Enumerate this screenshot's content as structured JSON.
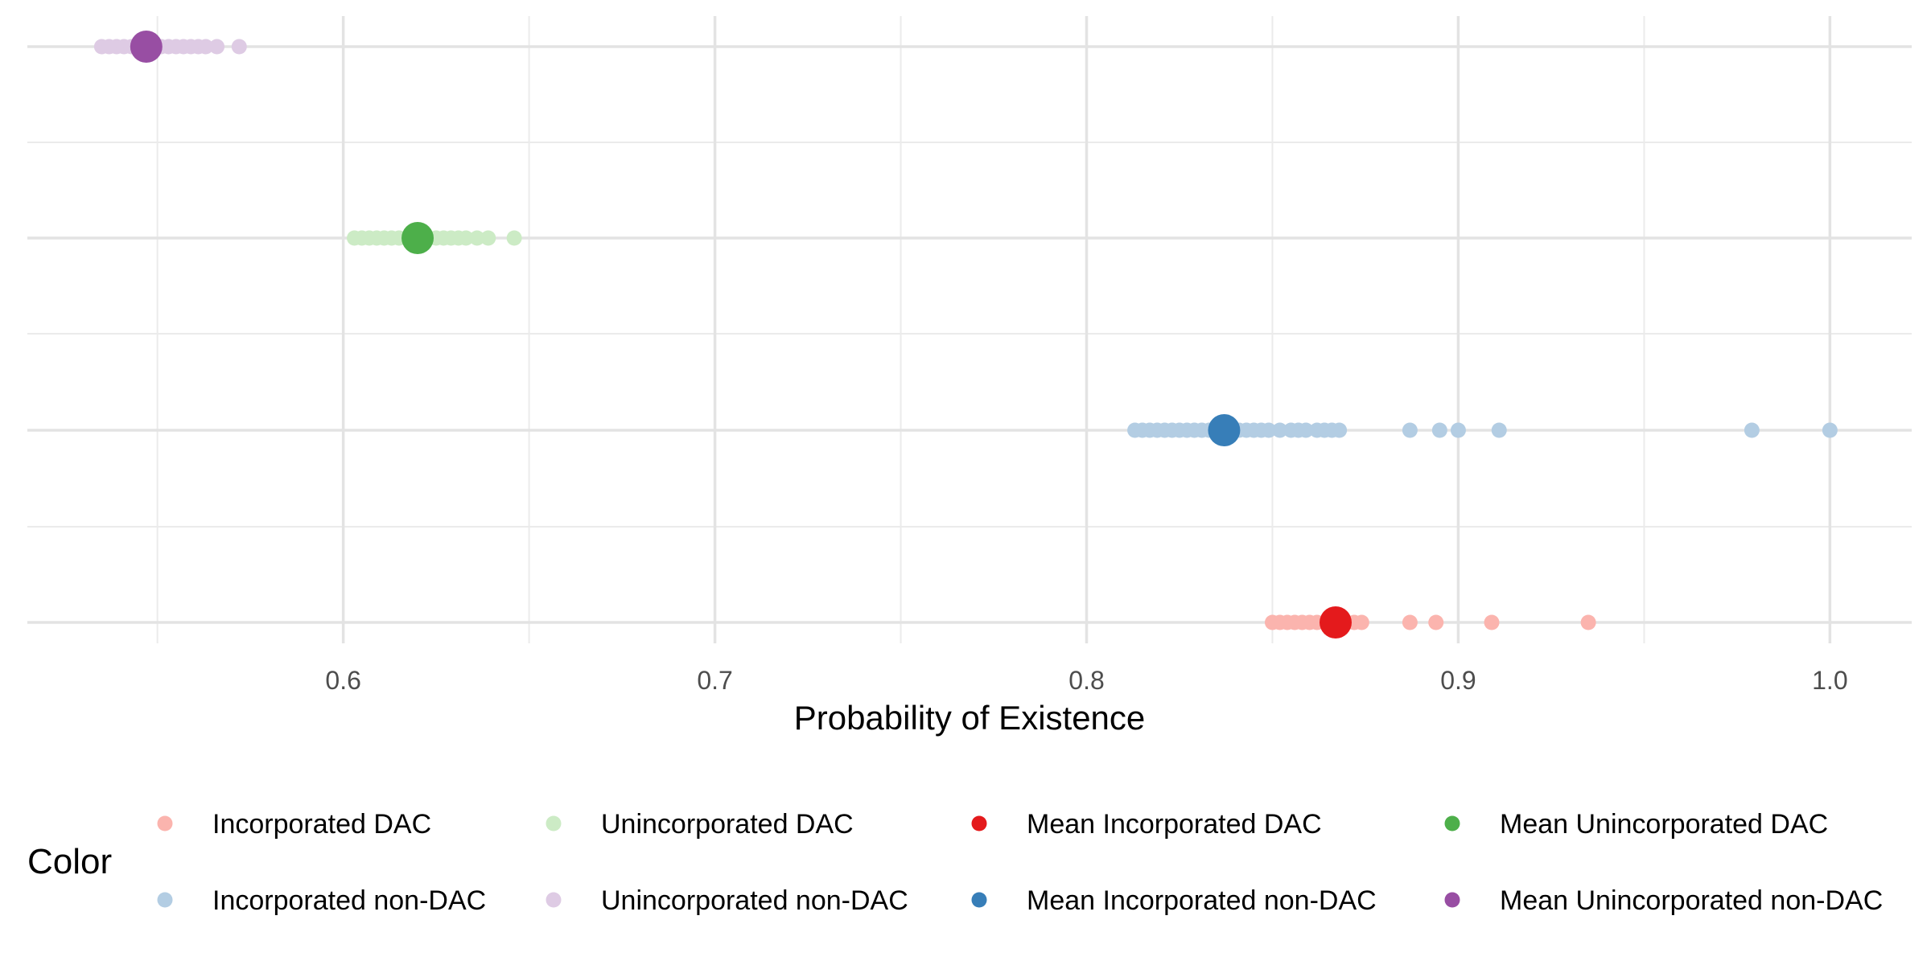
{
  "chart_data": {
    "type": "scatter",
    "xlabel": "Probability of Existence",
    "ylabel": "",
    "xlim": [
      0.515,
      1.022
    ],
    "x_ticks": [
      0.6,
      0.7,
      0.8,
      0.9,
      1.0
    ],
    "x_tick_labels": [
      "0.6",
      "0.7",
      "0.8",
      "0.9",
      "1.0"
    ],
    "x_minor_ticks": [
      0.55,
      0.65,
      0.75,
      0.85,
      0.95
    ],
    "grid": true,
    "legend": {
      "title": "Color",
      "placement": "bottom",
      "entries": [
        {
          "label": "Incorporated DAC",
          "color": "#fbb4ae",
          "marker": "point"
        },
        {
          "label": "Unincorporated DAC",
          "color": "#ccebc5",
          "marker": "point"
        },
        {
          "label": "Mean Incorporated DAC",
          "color": "#e41a1c",
          "marker": "point"
        },
        {
          "label": "Mean Unincorporated DAC",
          "color": "#4daf4a",
          "marker": "point"
        },
        {
          "label": "Incorporated non-DAC",
          "color": "#b3cde3",
          "marker": "point"
        },
        {
          "label": "Unincorporated non-DAC",
          "color": "#decbe4",
          "marker": "point"
        },
        {
          "label": "Mean Incorporated non-DAC",
          "color": "#377eb8",
          "marker": "point"
        },
        {
          "label": "Mean Unincorporated non-DAC",
          "color": "#984ea3",
          "marker": "point"
        }
      ]
    },
    "rows": [
      {
        "order": 1,
        "kind": "points",
        "name": "Unincorporated non-DAC",
        "color": "#decbe4",
        "x": [
          0.535,
          0.537,
          0.539,
          0.541,
          0.543,
          0.545,
          0.547,
          0.549,
          0.551,
          0.553,
          0.555,
          0.557,
          0.559,
          0.561,
          0.563,
          0.566,
          0.572
        ]
      },
      {
        "order": 1,
        "kind": "mean",
        "name": "Mean Unincorporated non-DAC",
        "color": "#984ea3",
        "x": [
          0.547
        ]
      },
      {
        "order": 2,
        "kind": "points",
        "name": "Unincorporated DAC",
        "color": "#ccebc5",
        "x": [
          0.603,
          0.605,
          0.607,
          0.609,
          0.611,
          0.613,
          0.615,
          0.617,
          0.619,
          0.621,
          0.623,
          0.625,
          0.627,
          0.629,
          0.631,
          0.633,
          0.636,
          0.639,
          0.646
        ]
      },
      {
        "order": 2,
        "kind": "mean",
        "name": "Mean Unincorporated DAC",
        "color": "#4daf4a",
        "x": [
          0.62
        ]
      },
      {
        "order": 3,
        "kind": "points",
        "name": "Incorporated non-DAC",
        "color": "#b3cde3",
        "x": [
          0.813,
          0.815,
          0.817,
          0.819,
          0.821,
          0.823,
          0.825,
          0.827,
          0.829,
          0.831,
          0.833,
          0.835,
          0.837,
          0.839,
          0.841,
          0.843,
          0.845,
          0.847,
          0.849,
          0.852,
          0.855,
          0.857,
          0.859,
          0.862,
          0.864,
          0.866,
          0.868,
          0.887,
          0.895,
          0.9,
          0.911,
          0.979,
          1.0
        ]
      },
      {
        "order": 3,
        "kind": "mean",
        "name": "Mean Incorporated non-DAC",
        "color": "#377eb8",
        "x": [
          0.837
        ]
      },
      {
        "order": 4,
        "kind": "points",
        "name": "Incorporated DAC",
        "color": "#fbb4ae",
        "x": [
          0.85,
          0.852,
          0.854,
          0.856,
          0.858,
          0.86,
          0.862,
          0.864,
          0.866,
          0.868,
          0.87,
          0.872,
          0.874,
          0.887,
          0.894,
          0.909,
          0.935
        ]
      },
      {
        "order": 4,
        "kind": "mean",
        "name": "Mean Incorporated DAC",
        "color": "#e41a1c",
        "x": [
          0.867
        ]
      }
    ]
  }
}
